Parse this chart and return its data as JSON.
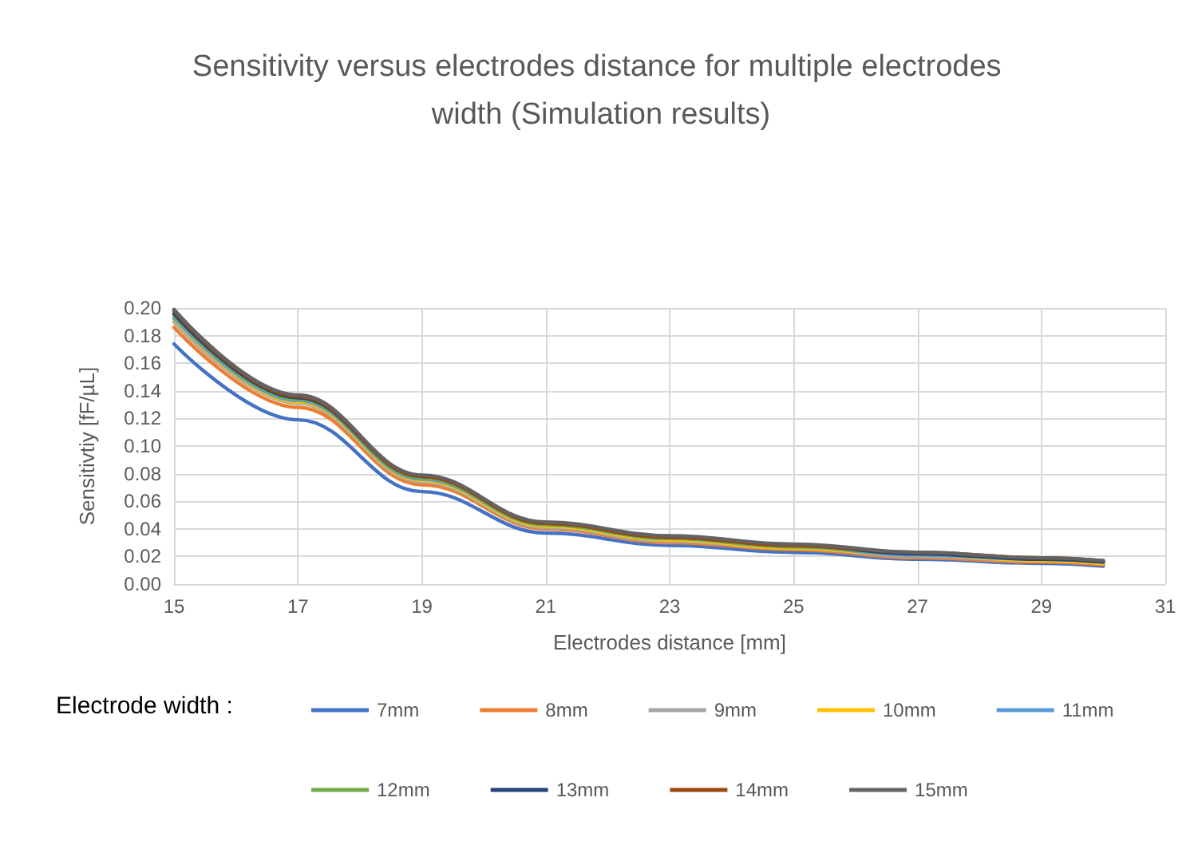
{
  "chart_data": {
    "type": "line",
    "title": "Sensitivity versus electrodes distance for multiple electrodes width (Simulation results)",
    "xlabel": "Electrodes distance [mm]",
    "ylabel": "Sensitivtiy [fF/µL]",
    "legend_title": "Electrode width :",
    "x": [
      15,
      17,
      19,
      21,
      23,
      25,
      27,
      29,
      30
    ],
    "series": [
      {
        "name": "7mm",
        "color": "#4472c4",
        "values": [
          0.174,
          0.119,
          0.067,
          0.037,
          0.028,
          0.023,
          0.018,
          0.015,
          0.013
        ]
      },
      {
        "name": "8mm",
        "color": "#ed7d31",
        "values": [
          0.186,
          0.128,
          0.072,
          0.04,
          0.03,
          0.025,
          0.019,
          0.016,
          0.014
        ]
      },
      {
        "name": "9mm",
        "color": "#a5a5a5",
        "values": [
          0.19,
          0.131,
          0.074,
          0.041,
          0.031,
          0.026,
          0.02,
          0.017,
          0.015
        ]
      },
      {
        "name": "10mm",
        "color": "#ffc000",
        "values": [
          0.192,
          0.132,
          0.075,
          0.042,
          0.032,
          0.026,
          0.021,
          0.017,
          0.015
        ]
      },
      {
        "name": "11mm",
        "color": "#5b9bd5",
        "values": [
          0.193,
          0.133,
          0.076,
          0.043,
          0.033,
          0.027,
          0.021,
          0.018,
          0.016
        ]
      },
      {
        "name": "12mm",
        "color": "#70ad47",
        "values": [
          0.195,
          0.134,
          0.077,
          0.043,
          0.033,
          0.027,
          0.022,
          0.018,
          0.016
        ]
      },
      {
        "name": "13mm",
        "color": "#264478",
        "values": [
          0.196,
          0.135,
          0.078,
          0.044,
          0.034,
          0.028,
          0.022,
          0.018,
          0.016
        ]
      },
      {
        "name": "14mm",
        "color": "#9e480e",
        "values": [
          0.198,
          0.136,
          0.078,
          0.044,
          0.034,
          0.028,
          0.023,
          0.019,
          0.017
        ]
      },
      {
        "name": "15mm",
        "color": "#636363",
        "values": [
          0.199,
          0.137,
          0.079,
          0.045,
          0.035,
          0.029,
          0.023,
          0.019,
          0.017
        ]
      }
    ],
    "xlim": [
      15,
      31
    ],
    "xticks": [
      15,
      17,
      19,
      21,
      23,
      25,
      27,
      29,
      31
    ],
    "ylim": [
      0,
      0.2
    ],
    "yticks": [
      {
        "value": 0,
        "label": "0.00"
      },
      {
        "value": 0.02,
        "label": "0.02"
      },
      {
        "value": 0.04,
        "label": "0.04"
      },
      {
        "value": 0.06,
        "label": "0.06"
      },
      {
        "value": 0.08,
        "label": "0.08"
      },
      {
        "value": 0.1,
        "label": "0.10"
      },
      {
        "value": 0.12,
        "label": "0.12"
      },
      {
        "value": 0.14,
        "label": "0.14"
      },
      {
        "value": 0.16,
        "label": "0.16"
      },
      {
        "value": 0.18,
        "label": "0.18"
      },
      {
        "value": 0.2,
        "label": "0.20"
      }
    ],
    "grid": true,
    "legend": "bottom",
    "line_style": "solid",
    "marker": "none"
  }
}
